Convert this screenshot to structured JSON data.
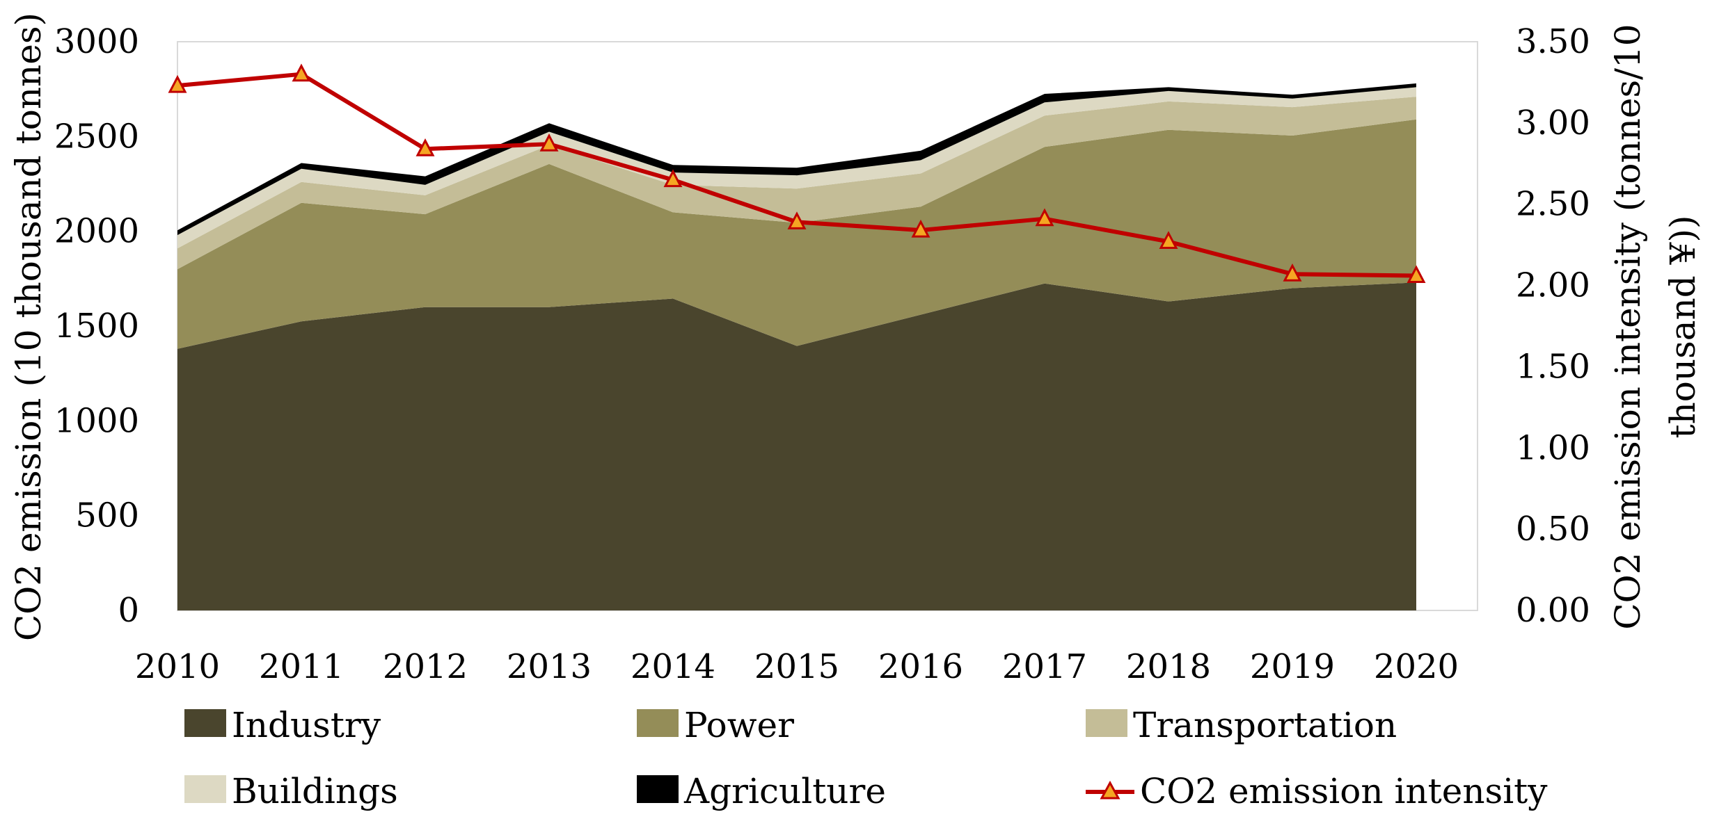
{
  "chart_data": {
    "type": "area",
    "subtype": "stacked area with secondary-axis line",
    "title": "",
    "categories": [
      "2010",
      "2011",
      "2012",
      "2013",
      "2014",
      "2015",
      "2016",
      "2017",
      "2018",
      "2019",
      "2020"
    ],
    "series": [
      {
        "name": "Industry",
        "axis": "left",
        "color": "#4a452d",
        "values": [
          1380,
          1525,
          1600,
          1600,
          1645,
          1395,
          1560,
          1725,
          1630,
          1700,
          1730
        ]
      },
      {
        "name": "Power",
        "axis": "left",
        "color": "#948d58",
        "values": [
          420,
          625,
          490,
          755,
          455,
          650,
          570,
          720,
          905,
          805,
          860
        ]
      },
      {
        "name": "Transportation",
        "axis": "left",
        "color": "#c4bd97",
        "values": [
          110,
          110,
          100,
          100,
          145,
          180,
          175,
          165,
          150,
          150,
          120
        ]
      },
      {
        "name": "Buildings",
        "axis": "left",
        "color": "#ddd9c3",
        "values": [
          70,
          70,
          55,
          70,
          65,
          70,
          70,
          70,
          55,
          45,
          50
        ]
      },
      {
        "name": "Agriculture",
        "axis": "left",
        "color": "#000000",
        "values": [
          25,
          30,
          45,
          45,
          40,
          40,
          50,
          45,
          20,
          20,
          20
        ]
      },
      {
        "name": "CO2 emission intensity",
        "axis": "right",
        "type": "line",
        "color": "#c00000",
        "marker_fill": "#f5a623",
        "values": [
          3.23,
          3.3,
          2.84,
          2.87,
          2.65,
          2.39,
          2.34,
          2.41,
          2.27,
          2.07,
          2.06
        ]
      }
    ],
    "left_axis": {
      "label": "CO2 emission (10 thousand tonnes)",
      "ylim": [
        0,
        3000
      ],
      "ticks": [
        "0",
        "500",
        "1000",
        "1500",
        "2000",
        "2500",
        "3000"
      ]
    },
    "right_axis": {
      "label_lines": [
        "CO2 emission intensity (tonnes/10",
        "thousand ¥))"
      ],
      "ylim": [
        0,
        3.5
      ],
      "ticks": [
        "0.00",
        "0.50",
        "1.00",
        "1.50",
        "2.00",
        "2.50",
        "3.00",
        "3.50"
      ]
    },
    "legend_position": "bottom",
    "grid": false
  }
}
